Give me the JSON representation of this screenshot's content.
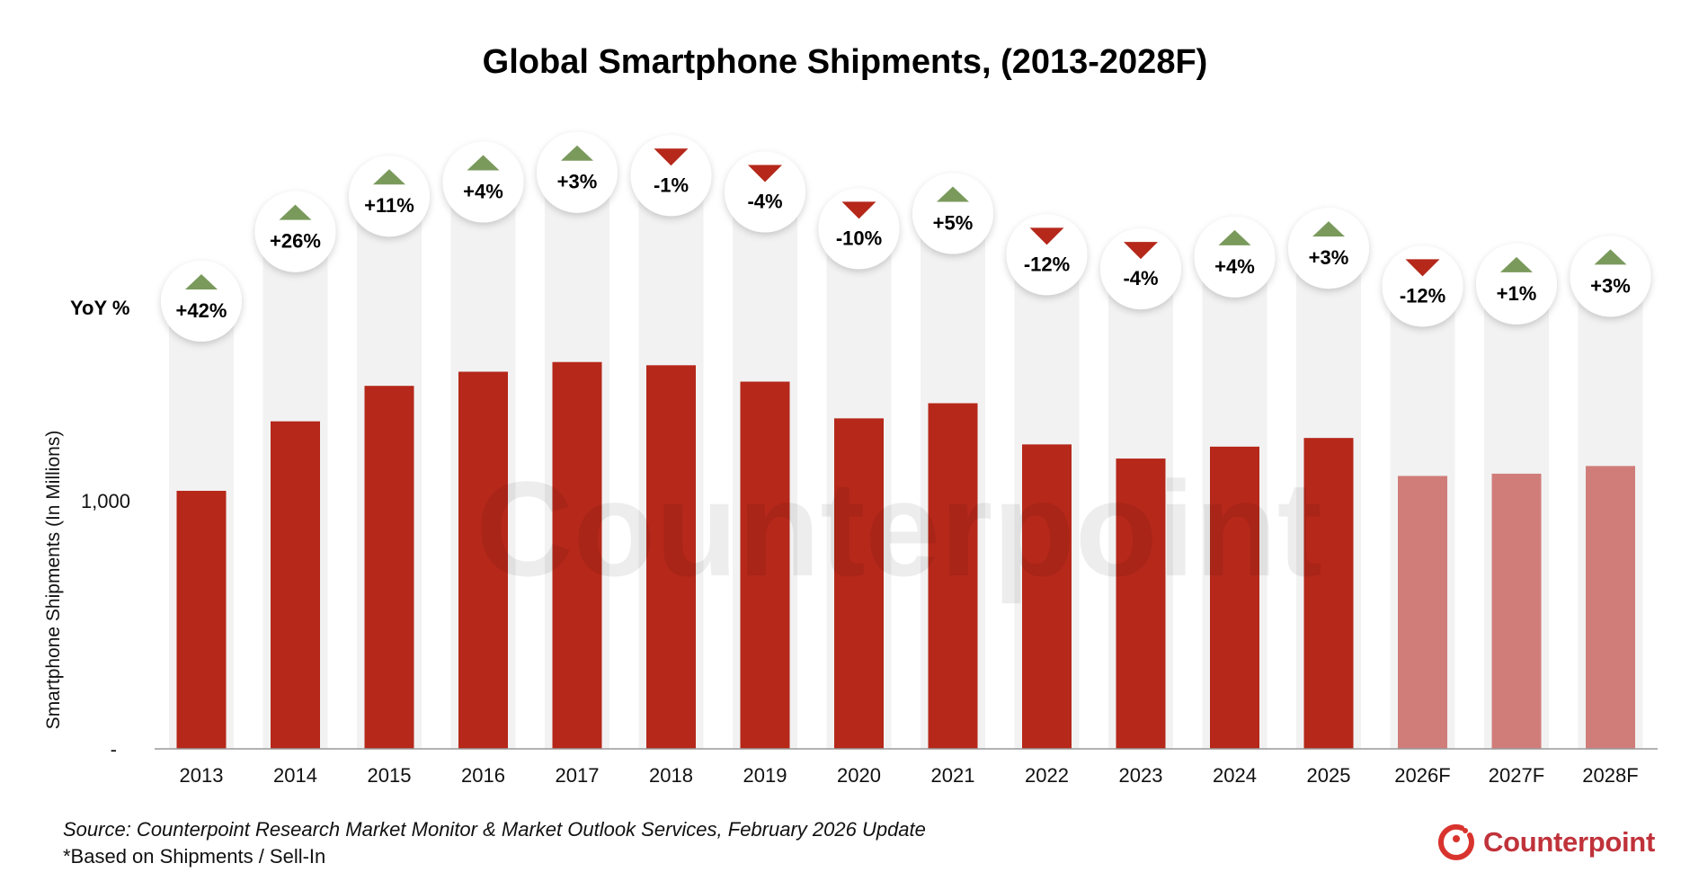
{
  "chart_data": {
    "type": "bar",
    "title": "Global Smartphone Shipments, (2013-2028F)",
    "ylabel": "Smartphone Shipments (In Millions)",
    "xlabel": "",
    "yticks": [
      {
        "value": 0,
        "label": "-"
      },
      {
        "value": 1000,
        "label": "1,000"
      }
    ],
    "ylim": [
      0,
      1800
    ],
    "grid": false,
    "yoy_label": "YoY %",
    "categories": [
      "2013",
      "2014",
      "2015",
      "2016",
      "2017",
      "2018",
      "2019",
      "2020",
      "2021",
      "2022",
      "2023",
      "2024",
      "2025",
      "2026F",
      "2027F",
      "2028F"
    ],
    "values": [
      1040,
      1320,
      1463,
      1520,
      1559,
      1546,
      1480,
      1332,
      1393,
      1227,
      1170,
      1218,
      1253,
      1100,
      1109,
      1140
    ],
    "forecast": [
      false,
      false,
      false,
      false,
      false,
      false,
      false,
      false,
      false,
      false,
      false,
      false,
      false,
      true,
      true,
      true
    ],
    "yoy": [
      "+42%",
      "+26%",
      "+11%",
      "+4%",
      "+3%",
      "-1%",
      "-4%",
      "-10%",
      "+5%",
      "-12%",
      "-4%",
      "+4%",
      "+3%",
      "-12%",
      "+1%",
      "+3%"
    ],
    "colors": {
      "actual": "#b5281a",
      "forecast": "#d07d7a",
      "up": "#7a9a5c",
      "down": "#b5281a",
      "column_bg": "#f2f2f2"
    }
  },
  "footer": {
    "source": "Source: Counterpoint Research Market Monitor & Market Outlook Services, February 2026 Update",
    "note": "*Based on Shipments / Sell-In"
  },
  "logo": {
    "text": "Counterpoint",
    "color": "#c0323a"
  },
  "watermark": "Counterpoint"
}
